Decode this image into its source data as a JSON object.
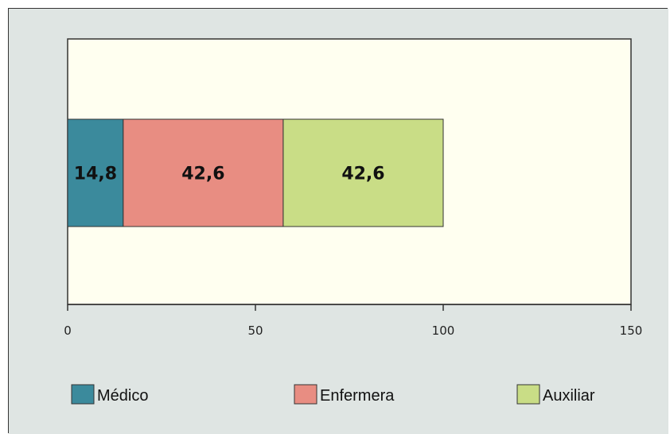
{
  "colors": {
    "outer_background": "#dfe5e3",
    "plot_background": "#fffff0",
    "frame": "#333333",
    "medico": "#3b8a9c",
    "enfermera": "#e88d82",
    "auxiliar": "#c9dd86"
  },
  "chart_data": {
    "type": "bar",
    "orientation": "horizontal",
    "stacked": true,
    "title": "",
    "xlabel": "",
    "ylabel": "",
    "xlim": [
      0,
      150
    ],
    "ticks": [
      "0",
      "50",
      "100",
      "150"
    ],
    "categories": [
      ""
    ],
    "grid": false,
    "legend_position": "bottom",
    "series": [
      {
        "name": "Médico",
        "values": [
          14.8
        ],
        "label": "14,8",
        "color": "#3b8a9c"
      },
      {
        "name": "Enfermera",
        "values": [
          42.6
        ],
        "label": "42,6",
        "color": "#e88d82"
      },
      {
        "name": "Auxiliar",
        "values": [
          42.6
        ],
        "label": "42,6",
        "color": "#c9dd86"
      }
    ]
  }
}
